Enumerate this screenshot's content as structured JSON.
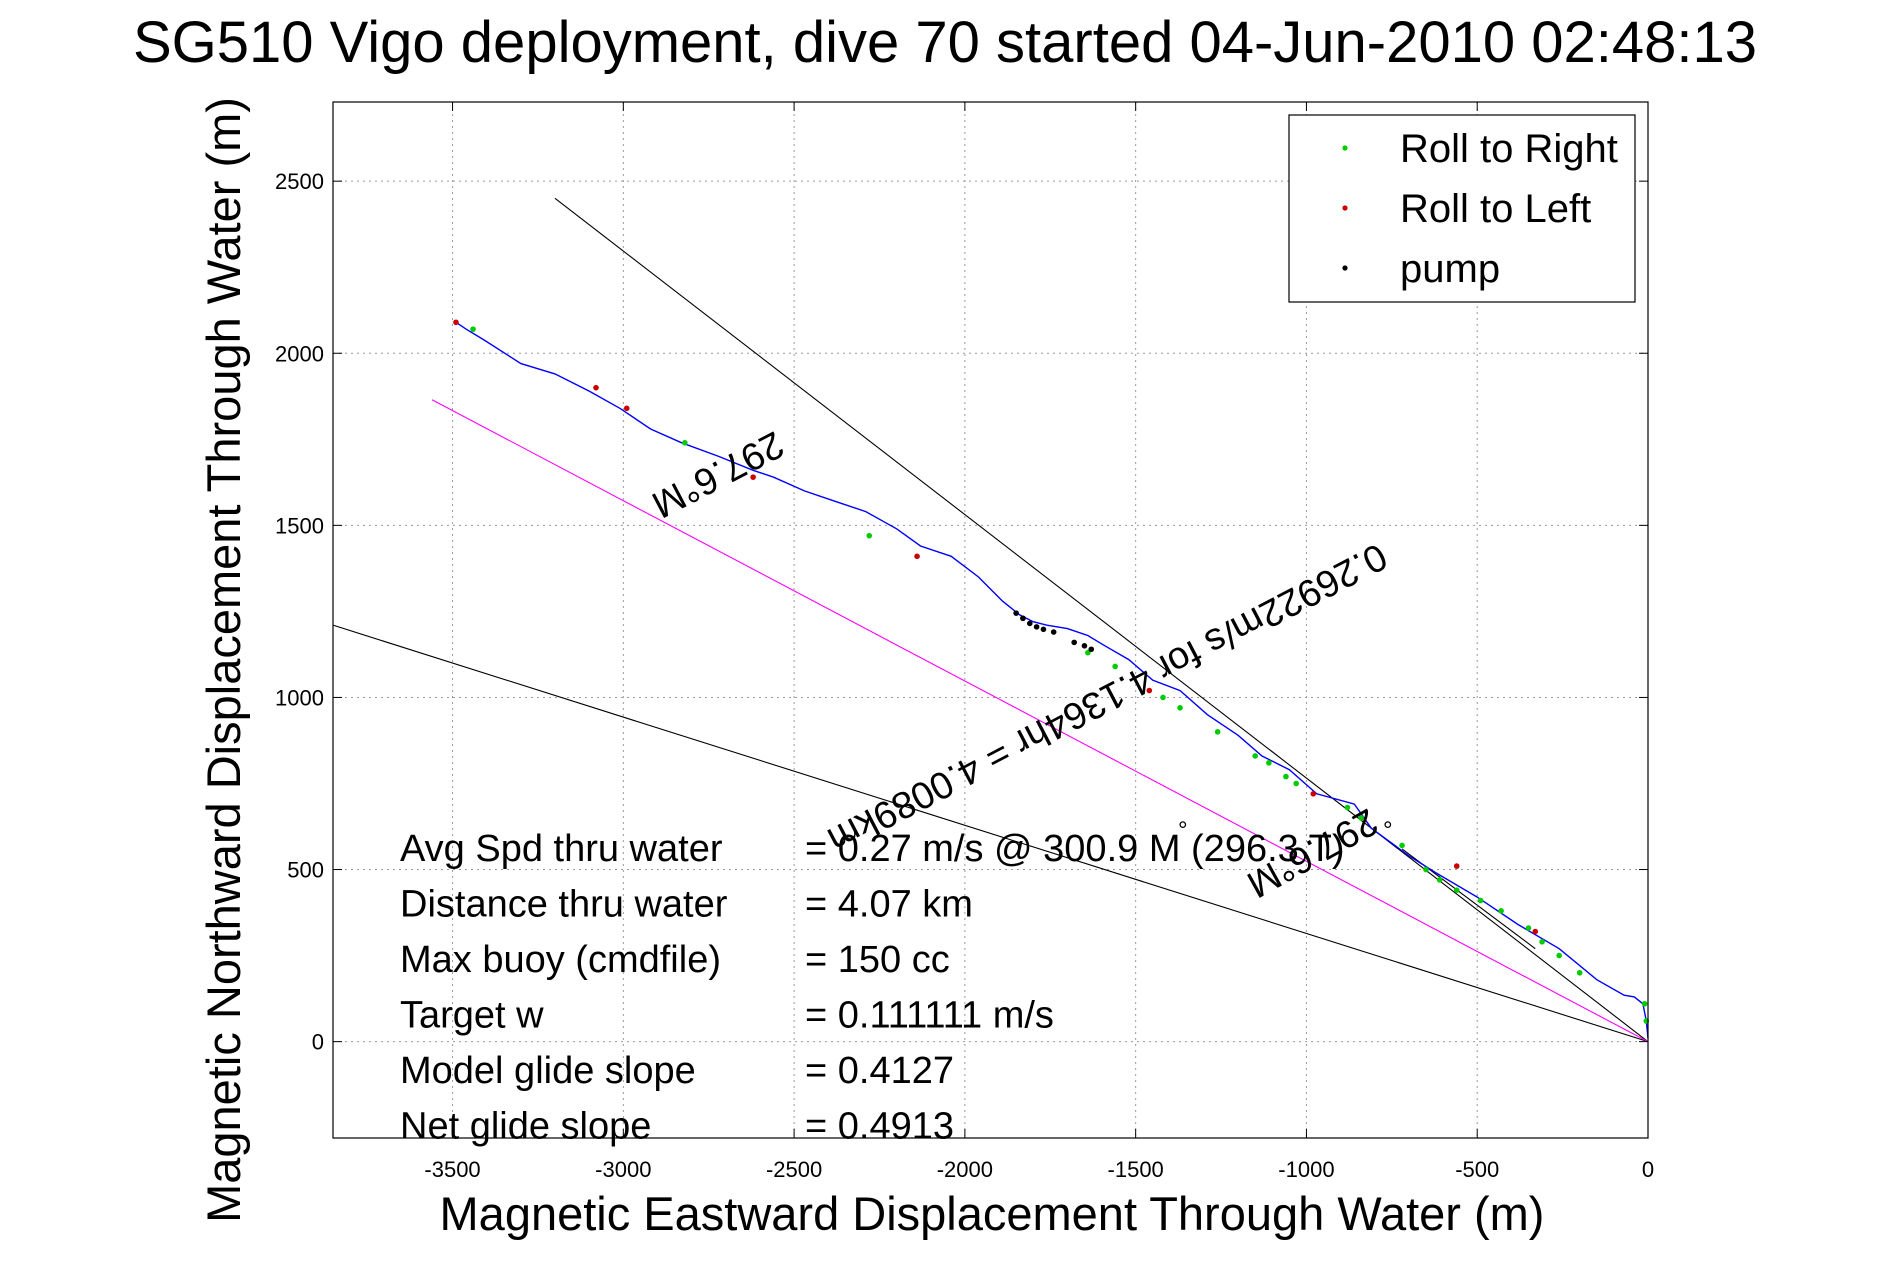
{
  "chart_data": {
    "type": "line",
    "title": "SG510 Vigo deployment, dive 70 started 04-Jun-2010 02:48:13",
    "xlabel": "Magnetic Eastward Displacement Through Water (m)",
    "ylabel": "Magnetic Northward Displacement Through Water (m)",
    "xlim": [
      -3850,
      0
    ],
    "ylim": [
      -280,
      2730
    ],
    "xticks": [
      -3500,
      -3000,
      -2500,
      -2000,
      -1500,
      -1000,
      -500,
      0
    ],
    "yticks": [
      0,
      500,
      1000,
      1500,
      2000,
      2500
    ],
    "grid": true,
    "legend_position": "top-right",
    "legend": [
      {
        "label": "Roll to Right",
        "color": "#00cc00"
      },
      {
        "label": "Roll to Left",
        "color": "#cc0000"
      },
      {
        "label": "pump",
        "color": "#000000"
      }
    ],
    "series": [
      {
        "color": "#0000ff",
        "x": [
          0,
          -5,
          -15,
          -40,
          -70,
          -150,
          -260,
          -380,
          -500,
          -620,
          -700,
          -810,
          -860,
          -970,
          -1050,
          -1130,
          -1200,
          -1290,
          -1370,
          -1450,
          -1520,
          -1590,
          -1640,
          -1700,
          -1760,
          -1800,
          -1840,
          -1890,
          -1960,
          -2040,
          -2130,
          -2200,
          -2290,
          -2380,
          -2470,
          -2560,
          -2620,
          -2720,
          -2830,
          -2920,
          -3010,
          -3100,
          -3200,
          -3300,
          -3410,
          -3460,
          -3490
        ],
        "y": [
          10,
          60,
          110,
          130,
          135,
          180,
          270,
          340,
          420,
          490,
          540,
          620,
          690,
          720,
          790,
          830,
          890,
          950,
          1020,
          1050,
          1110,
          1150,
          1180,
          1200,
          1210,
          1220,
          1240,
          1280,
          1350,
          1410,
          1440,
          1490,
          1540,
          1570,
          1600,
          1640,
          1660,
          1700,
          1740,
          1780,
          1840,
          1890,
          1940,
          1970,
          2040,
          2070,
          2090
        ]
      }
    ],
    "roll_right_points": {
      "x": [
        -3440,
        -2820,
        -2280,
        -1640,
        -1560,
        -1420,
        -1370,
        -1260,
        -1150,
        -1110,
        -1060,
        -1030,
        -880,
        -840,
        -720,
        -650,
        -610,
        -560,
        -490,
        -430,
        -350,
        -310,
        -260,
        -200,
        -10,
        -5
      ],
      "y": [
        2070,
        1740,
        1470,
        1130,
        1090,
        1000,
        970,
        900,
        830,
        810,
        770,
        750,
        680,
        650,
        570,
        500,
        470,
        440,
        410,
        380,
        330,
        290,
        250,
        200,
        110,
        60
      ]
    },
    "roll_left_points": {
      "x": [
        -3490,
        -3080,
        -2990,
        -2620,
        -2140,
        -1830,
        -1460,
        -980,
        -560,
        -330
      ],
      "y": [
        2090,
        1900,
        1840,
        1640,
        1410,
        1230,
        1020,
        720,
        510,
        320
      ]
    },
    "pump_points": {
      "x": [
        -1850,
        -1830,
        -1810,
        -1790,
        -1770,
        -1740,
        -1680,
        -1650,
        -1630
      ],
      "y": [
        1245,
        1230,
        1215,
        1205,
        1198,
        1190,
        1160,
        1150,
        1140
      ]
    },
    "reference_lines": [
      {
        "color": "#000000",
        "x": [
          0,
          -3200
        ],
        "y": [
          0,
          2450
        ]
      },
      {
        "color": "#000000",
        "x": [
          0,
          -3850
        ],
        "y": [
          0,
          1210
        ]
      },
      {
        "color": "#ff00ff",
        "x": [
          0,
          -3560
        ],
        "y": [
          0,
          1865
        ]
      },
      {
        "color": "#000000",
        "x": [
          -720,
          -330
        ],
        "y": [
          560,
          270
        ]
      }
    ],
    "annotations": [
      {
        "text": "297.6°M",
        "x": -2740,
        "y": 1680,
        "rotation": 152.4
      },
      {
        "text": "0.26922m/s for 4.1364hr = 4.0089km",
        "x": -1600,
        "y": 1030,
        "rotation": 152.4
      },
      {
        "text": "297.6°M",
        "x": -1000,
        "y": 580,
        "rotation": 151
      }
    ],
    "stats": [
      {
        "label": "Avg Spd thru water",
        "value": "=  0.27 m/s @ 300.9   M (296.3  T)"
      },
      {
        "label": "Distance thru water",
        "value": "=  4.07 km"
      },
      {
        "label": "Max buoy (cmdfile)",
        "value": "= 150 cc"
      },
      {
        "label": "Target w",
        "value": "= 0.111111 m/s"
      },
      {
        "label": "Model glide slope",
        "value": "= 0.4127"
      },
      {
        "label": "Net glide slope",
        "value": "= 0.4913"
      }
    ],
    "stat_degree_symbols": [
      "°",
      "°"
    ]
  }
}
